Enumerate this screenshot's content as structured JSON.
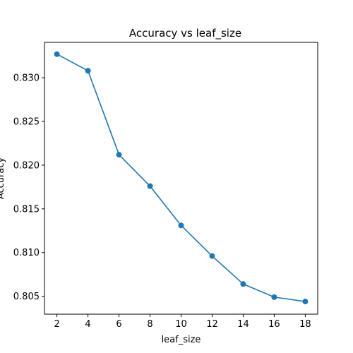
{
  "chart_data": {
    "type": "line",
    "title": "Accuracy vs leaf_size",
    "xlabel": "leaf_size",
    "ylabel": "Accuracy",
    "x": [
      2,
      4,
      6,
      8,
      10,
      12,
      14,
      16,
      18
    ],
    "series": [
      {
        "values": [
          0.8327,
          0.8308,
          0.8212,
          0.8176,
          0.8131,
          0.8096,
          0.8064,
          0.8049,
          0.8044
        ],
        "color": "#1f77b4",
        "marker": "circle"
      }
    ],
    "xticks": [
      "2",
      "4",
      "6",
      "8",
      "10",
      "12",
      "14",
      "16",
      "18"
    ],
    "yticks": [
      "0.805",
      "0.810",
      "0.815",
      "0.820",
      "0.825",
      "0.830"
    ],
    "xlim": [
      1.2,
      18.8
    ],
    "ylim": [
      0.80295,
      0.83405
    ],
    "grid": false,
    "legend": "none"
  }
}
